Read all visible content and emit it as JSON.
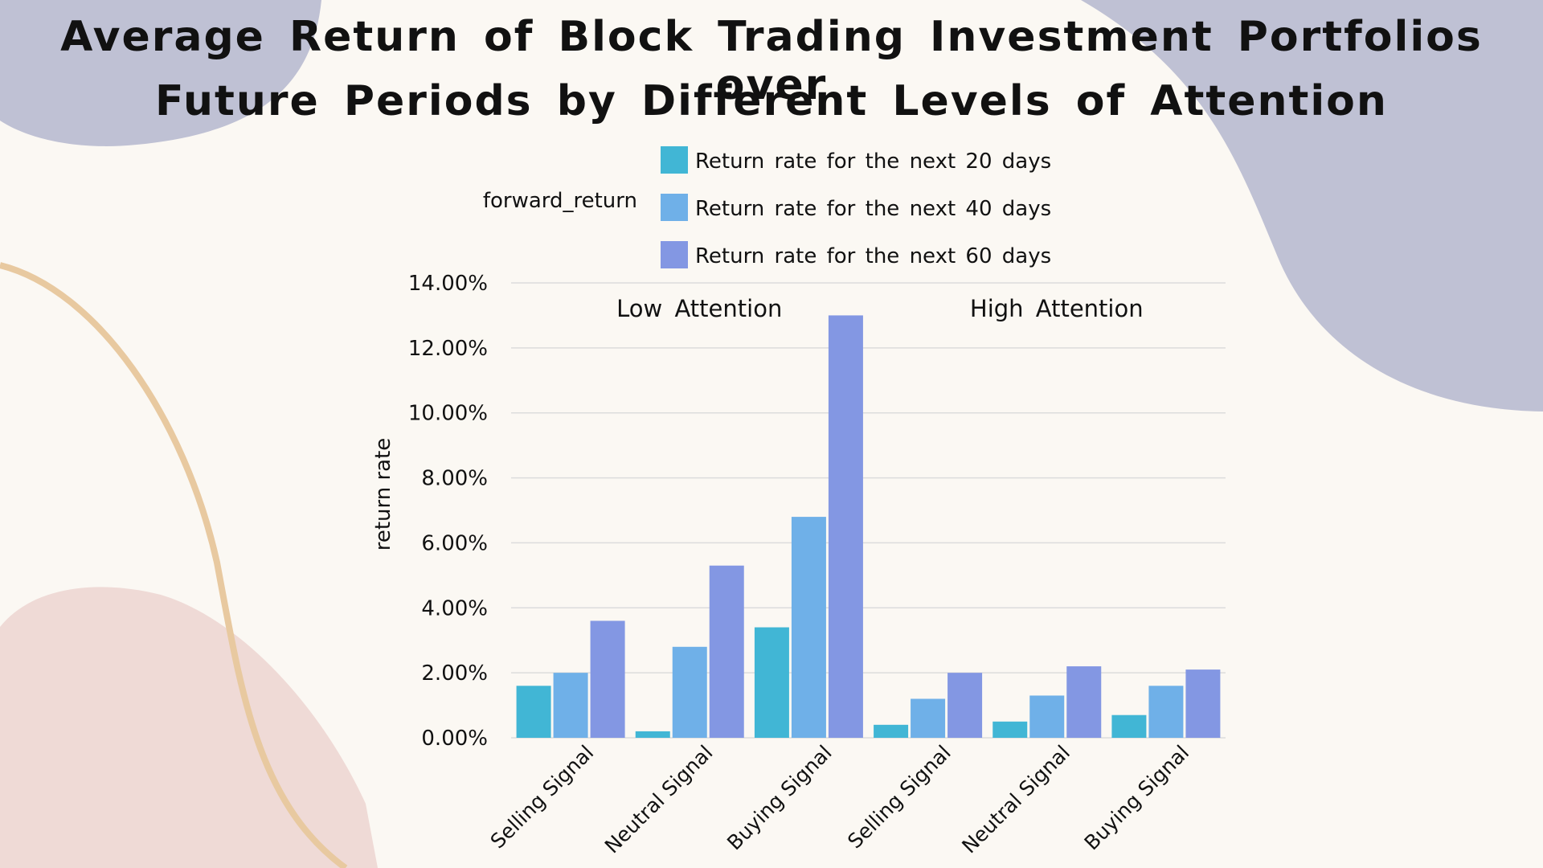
{
  "title_lines": [
    "Average Return of Block Trading Investment Portfolios over",
    "Future Periods by Different Levels of Attention"
  ],
  "colors": {
    "background": "#fbf8f3",
    "blob_top": "#bfc1d4",
    "blob_pink": "#efdad6",
    "curve": "#e8c9a0",
    "series_20": "#41b6d5",
    "series_40": "#6fb0e8",
    "series_60": "#8397e3",
    "grid": "#dcdcdc"
  },
  "chart_data": {
    "type": "bar",
    "title": "Average Return of Block Trading Investment Portfolios over Future Periods by Different Levels of Attention",
    "legend_title": "forward_return",
    "legend_position": "top",
    "ylabel": "return rate",
    "xlabel": "",
    "ylim": [
      0,
      0.14
    ],
    "yticks": [
      "0.00%",
      "2.00%",
      "4.00%",
      "6.00%",
      "8.00%",
      "10.00%",
      "12.00%",
      "14.00%"
    ],
    "ytick_values": [
      0,
      0.02,
      0.04,
      0.06,
      0.08,
      0.1,
      0.12,
      0.14
    ],
    "grid": true,
    "groups": [
      "Low Attention",
      "High Attention"
    ],
    "categories": [
      "Selling Signal",
      "Neutral Signal",
      "Buying Signal",
      "Selling Signal",
      "Neutral Signal",
      "Buying Signal"
    ],
    "series": [
      {
        "name": "Return rate for the next 20 days",
        "color": "#41b6d5",
        "values": [
          0.016,
          0.002,
          0.034,
          0.004,
          0.005,
          0.007
        ]
      },
      {
        "name": "Return rate for the next 40 days",
        "color": "#6fb0e8",
        "values": [
          0.02,
          0.028,
          0.068,
          0.012,
          0.013,
          0.016
        ]
      },
      {
        "name": "Return rate for the next 60 days",
        "color": "#8397e3",
        "values": [
          0.036,
          0.053,
          0.13,
          0.02,
          0.022,
          0.021
        ]
      }
    ]
  }
}
